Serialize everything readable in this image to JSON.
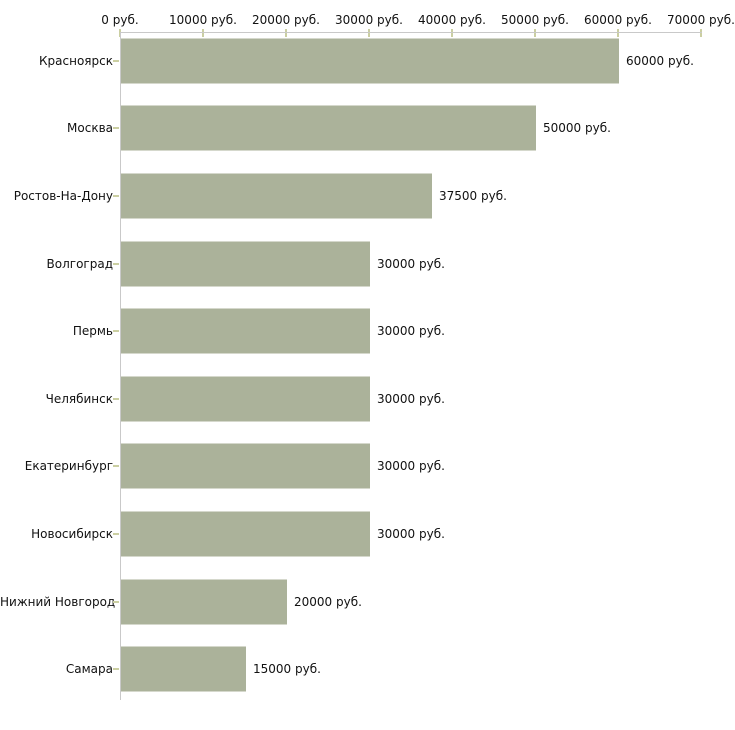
{
  "chart_data": {
    "type": "bar",
    "orientation": "horizontal",
    "title": "",
    "xlabel": "",
    "ylabel": "",
    "xlim": [
      0,
      70000
    ],
    "x_tick_interval": 10000,
    "x_tick_labels": [
      "0 руб.",
      "10000 руб.",
      "20000 руб.",
      "30000 руб.",
      "40000 руб.",
      "50000 руб.",
      "60000 руб.",
      "70000 руб."
    ],
    "categories": [
      "Красноярск",
      "Москва",
      "Ростов-На-Дону",
      "Волгоград",
      "Пермь",
      "Челябинск",
      "Екатеринбург",
      "Новосибирск",
      "Нижний Новгород",
      "Самара"
    ],
    "values": [
      60000,
      50000,
      37500,
      30000,
      30000,
      30000,
      30000,
      30000,
      20000,
      15000
    ],
    "value_labels": [
      "60000 руб.",
      "50000 руб.",
      "37500 руб.",
      "30000 руб.",
      "30000 руб.",
      "30000 руб.",
      "30000 руб.",
      "30000 руб.",
      "20000 руб.",
      "15000 руб."
    ],
    "grid": "off",
    "legend": "none",
    "colors": {
      "bar": "#abb29a",
      "axis_line": "#c9c9c9",
      "tick_mark": "#cbcfa2",
      "text": "#111111",
      "background": "#ffffff"
    }
  }
}
